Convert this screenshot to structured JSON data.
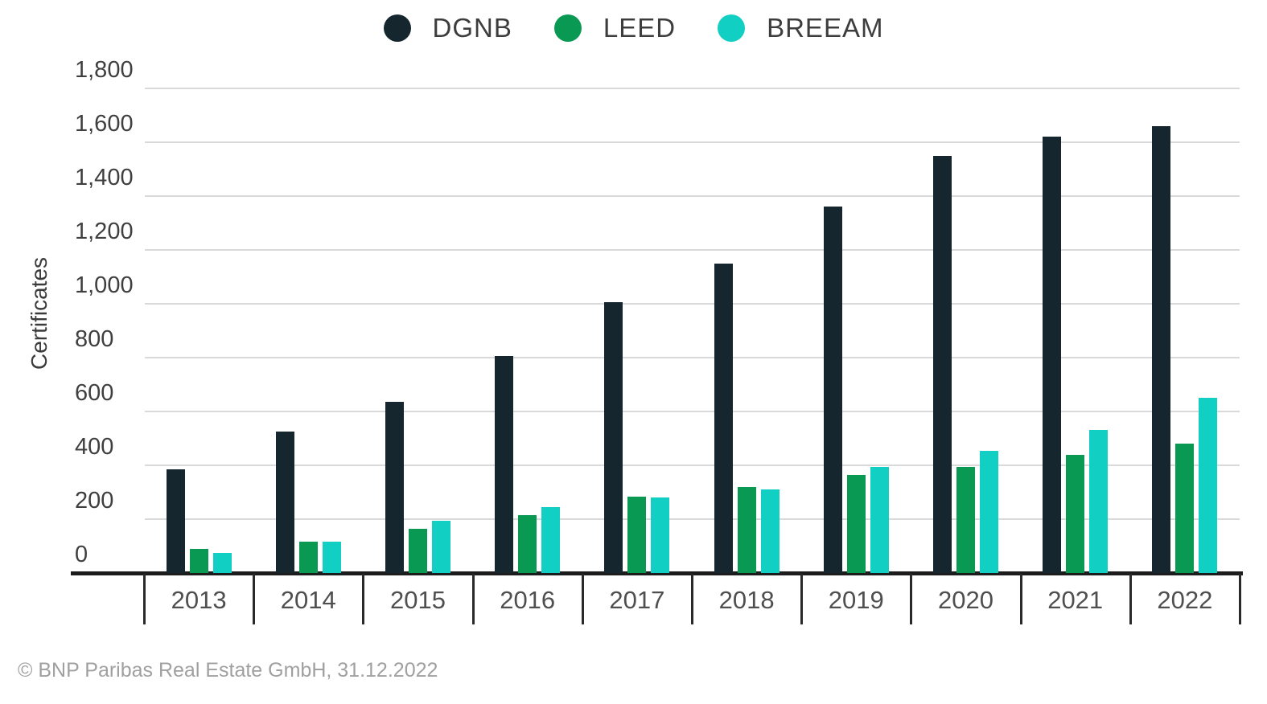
{
  "chart_data": {
    "type": "bar",
    "title": "",
    "ylabel": "Certificates",
    "xlabel": "",
    "categories": [
      "2013",
      "2014",
      "2015",
      "2016",
      "2017",
      "2018",
      "2019",
      "2020",
      "2021",
      "2022"
    ],
    "series": [
      {
        "name": "DGNB",
        "color": "#15262f",
        "values": [
          385,
          525,
          635,
          805,
          1005,
          1150,
          1360,
          1550,
          1620,
          1660
        ]
      },
      {
        "name": "LEED",
        "color": "#0a9953",
        "values": [
          90,
          115,
          165,
          215,
          285,
          320,
          365,
          395,
          440,
          480
        ]
      },
      {
        "name": "BREEAM",
        "color": "#12cfc3",
        "values": [
          75,
          115,
          195,
          245,
          280,
          310,
          395,
          455,
          530,
          650
        ]
      }
    ],
    "ylim": [
      0,
      1800
    ],
    "ytick_values": [
      0,
      200,
      400,
      600,
      800,
      1000,
      1200,
      1400,
      1600,
      1800
    ],
    "ytick_labels": [
      "0",
      "200",
      "400",
      "600",
      "800",
      "1,000",
      "1,200",
      "1,400",
      "1,600",
      "1,800"
    ],
    "grid": "horizontal",
    "legend_position": "top"
  },
  "footer": {
    "copyright": "© BNP Paribas Real Estate GmbH, 31.12.2022"
  },
  "colors": {
    "axis": "#1c1c1c",
    "gridline": "#d9d9d9",
    "tick_text": "#3f3f3f",
    "footer_text": "#a0a0a0"
  }
}
